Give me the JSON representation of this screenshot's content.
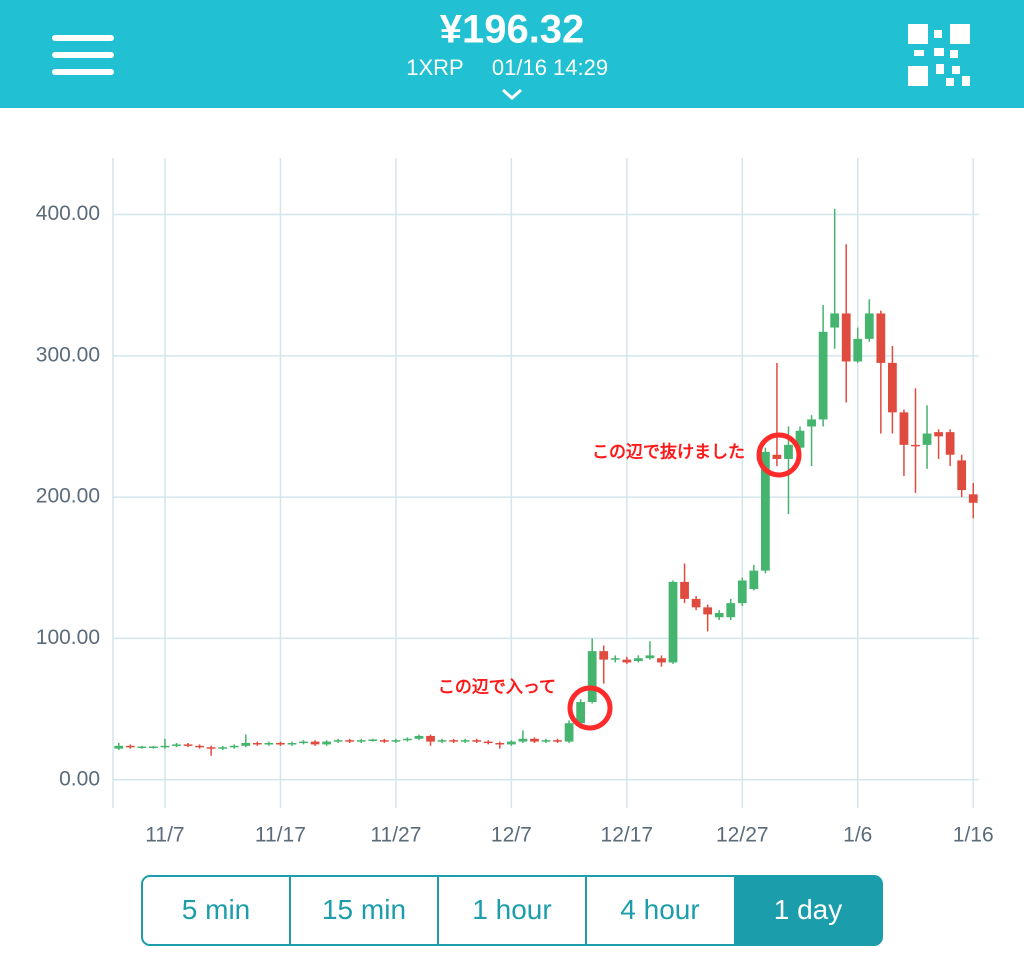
{
  "header": {
    "price": "¥196.32",
    "unit": "1XRP",
    "timestamp": "01/16 14:29"
  },
  "chart_data": {
    "type": "candlestick",
    "categories": [
      "11/3",
      "11/4",
      "11/5",
      "11/6",
      "11/7",
      "11/8",
      "11/9",
      "11/10",
      "11/11",
      "11/12",
      "11/13",
      "11/14",
      "11/15",
      "11/16",
      "11/17",
      "11/18",
      "11/19",
      "11/20",
      "11/21",
      "11/22",
      "11/23",
      "11/24",
      "11/25",
      "11/26",
      "11/27",
      "11/28",
      "11/29",
      "11/30",
      "12/1",
      "12/2",
      "12/3",
      "12/4",
      "12/5",
      "12/6",
      "12/7",
      "12/8",
      "12/9",
      "12/10",
      "12/11",
      "12/12",
      "12/13",
      "12/14",
      "12/15",
      "12/16",
      "12/17",
      "12/18",
      "12/19",
      "12/20",
      "12/21",
      "12/22",
      "12/23",
      "12/24",
      "12/25",
      "12/26",
      "12/27",
      "12/28",
      "12/29",
      "12/30",
      "12/31",
      "1/1",
      "1/2",
      "1/3",
      "1/4",
      "1/5",
      "1/6",
      "1/7",
      "1/8",
      "1/9",
      "1/10",
      "1/11",
      "1/12",
      "1/13",
      "1/14",
      "1/15",
      "1/16"
    ],
    "open": [
      22,
      24,
      23,
      23,
      23,
      24,
      25,
      24,
      23,
      22,
      23,
      24,
      26,
      25,
      26,
      25,
      26,
      27,
      25,
      27,
      28,
      27,
      28,
      28,
      27,
      28,
      29,
      31,
      27,
      28,
      27,
      28,
      27,
      26,
      25,
      27,
      29,
      27,
      28,
      27,
      40,
      55,
      91,
      85,
      85,
      84,
      86,
      86,
      83,
      140,
      128,
      122,
      115,
      115,
      125,
      135,
      148,
      230,
      227,
      235,
      250,
      255,
      320,
      330,
      296,
      312,
      330,
      295,
      260,
      237,
      237,
      246,
      246,
      226,
      202
    ],
    "high": [
      26,
      25,
      24,
      24,
      29,
      26,
      26,
      25,
      24,
      24,
      25,
      32,
      27,
      27,
      27,
      27,
      28,
      28,
      28,
      29,
      29,
      29,
      29,
      29,
      29,
      30,
      32,
      32,
      29,
      29,
      29,
      29,
      28,
      27,
      28,
      35,
      30,
      29,
      29,
      42,
      57,
      100,
      95,
      88,
      87,
      88,
      98,
      88,
      141,
      153,
      130,
      124,
      120,
      128,
      143,
      152,
      235,
      295,
      250,
      250,
      258,
      336,
      404,
      379,
      320,
      340,
      332,
      307,
      262,
      277,
      265,
      248,
      248,
      230,
      210
    ],
    "low": [
      21,
      22,
      22,
      22,
      22,
      23,
      23,
      22,
      17,
      21,
      22,
      23,
      24,
      24,
      24,
      24,
      25,
      24,
      24,
      26,
      26,
      26,
      27,
      26,
      26,
      27,
      28,
      24,
      26,
      26,
      26,
      26,
      25,
      22,
      24,
      26,
      26,
      26,
      26,
      26,
      38,
      54,
      68,
      83,
      82,
      83,
      85,
      80,
      82,
      125,
      120,
      105,
      113,
      113,
      123,
      134,
      146,
      222,
      188,
      233,
      222,
      250,
      305,
      267,
      295,
      310,
      245,
      245,
      215,
      203,
      220,
      227,
      222,
      200,
      185
    ],
    "close": [
      24,
      23,
      23.5,
      23.5,
      24,
      25,
      24,
      23,
      22,
      23,
      24,
      26,
      25,
      26,
      25,
      26,
      27,
      25,
      27,
      28,
      27,
      28,
      28.5,
      27,
      28,
      29,
      31,
      27,
      28,
      27,
      28,
      27,
      26,
      25,
      27,
      29,
      27,
      28,
      27,
      40,
      55,
      91,
      85,
      86,
      83,
      86,
      88,
      83,
      140,
      128,
      122,
      117,
      118,
      125,
      141,
      148,
      232,
      227,
      237,
      247,
      255,
      317,
      330,
      296,
      312,
      330,
      295,
      260,
      237,
      236,
      245,
      243,
      230,
      205,
      196
    ],
    "up_color": "#45b46e",
    "down_color": "#e04b3f",
    "ylim": [
      -20,
      440
    ],
    "yticks": [
      {
        "value": 0,
        "label": "0.00"
      },
      {
        "value": 100,
        "label": "100.00"
      },
      {
        "value": 200,
        "label": "200.00"
      },
      {
        "value": 300,
        "label": "300.00"
      },
      {
        "value": 400,
        "label": "400.00"
      }
    ],
    "xticks": [
      "11/7",
      "11/17",
      "11/27",
      "12/7",
      "12/17",
      "12/27",
      "1/6",
      "1/16"
    ],
    "grid": true,
    "annotations": [
      "この辺で入って",
      "この辺で抜けました"
    ]
  },
  "buttons": {
    "labels": [
      "5 min",
      "15 min",
      "1 hour",
      "4 hour",
      "1 day"
    ],
    "selected_index": 4
  }
}
